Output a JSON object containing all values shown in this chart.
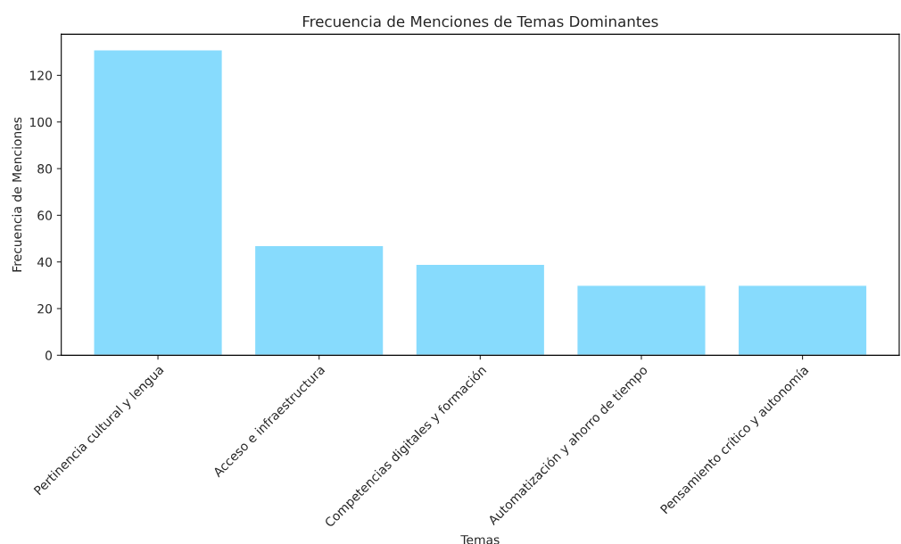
{
  "chart_data": {
    "type": "bar",
    "title": "Frecuencia de Menciones de Temas Dominantes",
    "xlabel": "Temas",
    "ylabel": "Frecuencia de Menciones",
    "categories": [
      "Pertinencia cultural y lengua",
      "Acceso e infraestructura",
      "Competencias digitales y formación",
      "Automatización y ahorro de tiempo",
      "Pensamiento crítico y autonomía"
    ],
    "values": [
      131,
      47,
      39,
      30,
      30
    ],
    "color": "#87dbfd",
    "ylim": [
      0,
      137.6
    ],
    "yticks": [
      0,
      20,
      40,
      60,
      80,
      100,
      120
    ],
    "grid": false,
    "legend": false
  }
}
